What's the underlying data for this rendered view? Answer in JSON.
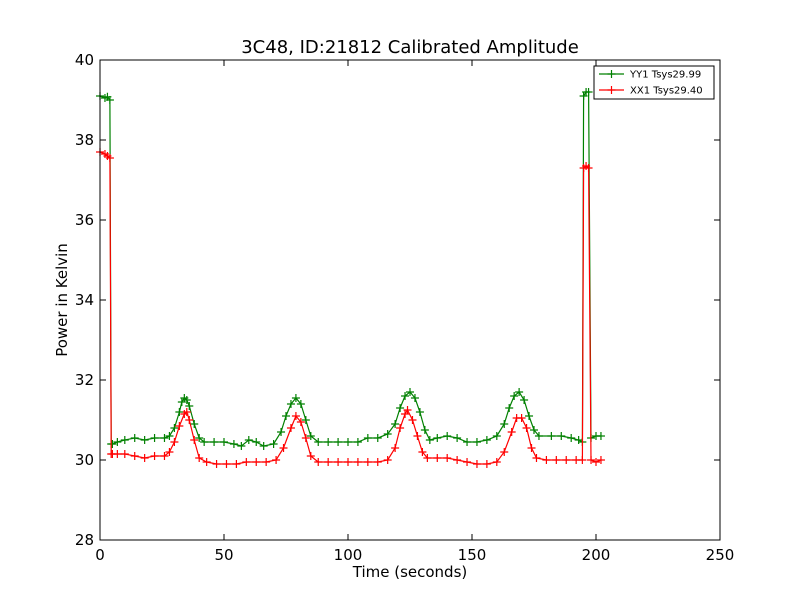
{
  "chart_data": {
    "type": "line",
    "title": "3C48, ID:21812 Calibrated Amplitude",
    "xlabel": "Time (seconds)",
    "ylabel": "Power in Kelvin",
    "xlim": [
      0,
      250
    ],
    "ylim": [
      28,
      40
    ],
    "xticks": [
      0,
      50,
      100,
      150,
      200,
      250
    ],
    "yticks": [
      28,
      30,
      32,
      34,
      36,
      38,
      40
    ],
    "grid": false,
    "legend_position": "top-right",
    "marker": "plus",
    "series": [
      {
        "name": "YY1 Tsys29.99",
        "color": "#008000",
        "points": [
          [
            0,
            39.1
          ],
          [
            2,
            39.05
          ],
          [
            3,
            39.08
          ],
          [
            4,
            39.0
          ],
          [
            4.5,
            30.4
          ],
          [
            5,
            30.4
          ],
          [
            7,
            30.45
          ],
          [
            10,
            30.5
          ],
          [
            14,
            30.55
          ],
          [
            18,
            30.5
          ],
          [
            22,
            30.55
          ],
          [
            26,
            30.55
          ],
          [
            28,
            30.6
          ],
          [
            30,
            30.8
          ],
          [
            32,
            31.2
          ],
          [
            33,
            31.45
          ],
          [
            34,
            31.55
          ],
          [
            35,
            31.5
          ],
          [
            36,
            31.35
          ],
          [
            38,
            30.9
          ],
          [
            40,
            30.55
          ],
          [
            42,
            30.45
          ],
          [
            46,
            30.45
          ],
          [
            50,
            30.45
          ],
          [
            54,
            30.4
          ],
          [
            57,
            30.35
          ],
          [
            60,
            30.5
          ],
          [
            63,
            30.45
          ],
          [
            66,
            30.35
          ],
          [
            70,
            30.4
          ],
          [
            73,
            30.7
          ],
          [
            75,
            31.1
          ],
          [
            77,
            31.4
          ],
          [
            79,
            31.55
          ],
          [
            81,
            31.4
          ],
          [
            83,
            31.0
          ],
          [
            85,
            30.6
          ],
          [
            88,
            30.45
          ],
          [
            92,
            30.45
          ],
          [
            96,
            30.45
          ],
          [
            100,
            30.45
          ],
          [
            104,
            30.45
          ],
          [
            108,
            30.55
          ],
          [
            112,
            30.55
          ],
          [
            116,
            30.65
          ],
          [
            119,
            30.9
          ],
          [
            121,
            31.3
          ],
          [
            123,
            31.6
          ],
          [
            125,
            31.7
          ],
          [
            127,
            31.55
          ],
          [
            129,
            31.2
          ],
          [
            131,
            30.75
          ],
          [
            133,
            30.5
          ],
          [
            136,
            30.55
          ],
          [
            140,
            30.6
          ],
          [
            144,
            30.55
          ],
          [
            148,
            30.45
          ],
          [
            152,
            30.45
          ],
          [
            156,
            30.5
          ],
          [
            160,
            30.6
          ],
          [
            163,
            30.9
          ],
          [
            165,
            31.3
          ],
          [
            167,
            31.6
          ],
          [
            169,
            31.7
          ],
          [
            171,
            31.5
          ],
          [
            173,
            31.1
          ],
          [
            175,
            30.75
          ],
          [
            177,
            30.6
          ],
          [
            182,
            30.6
          ],
          [
            186,
            30.6
          ],
          [
            190,
            30.55
          ],
          [
            193,
            30.5
          ],
          [
            194.5,
            30.45
          ],
          [
            195,
            39.1
          ],
          [
            196,
            39.2
          ],
          [
            197,
            39.2
          ],
          [
            198,
            30.55
          ],
          [
            200,
            30.6
          ],
          [
            202,
            30.6
          ]
        ]
      },
      {
        "name": "XX1 Tsys29.40",
        "color": "#ff0000",
        "points": [
          [
            0,
            37.7
          ],
          [
            2,
            37.65
          ],
          [
            3,
            37.6
          ],
          [
            4,
            37.55
          ],
          [
            4.5,
            30.15
          ],
          [
            5,
            30.15
          ],
          [
            7,
            30.15
          ],
          [
            10,
            30.15
          ],
          [
            14,
            30.1
          ],
          [
            18,
            30.05
          ],
          [
            22,
            30.1
          ],
          [
            26,
            30.1
          ],
          [
            28,
            30.2
          ],
          [
            30,
            30.45
          ],
          [
            32,
            30.85
          ],
          [
            34,
            31.15
          ],
          [
            35,
            31.2
          ],
          [
            36,
            31.0
          ],
          [
            38,
            30.5
          ],
          [
            40,
            30.05
          ],
          [
            43,
            29.95
          ],
          [
            47,
            29.9
          ],
          [
            51,
            29.9
          ],
          [
            55,
            29.9
          ],
          [
            59,
            29.95
          ],
          [
            63,
            29.95
          ],
          [
            67,
            29.95
          ],
          [
            71,
            30.0
          ],
          [
            74,
            30.3
          ],
          [
            77,
            30.8
          ],
          [
            79,
            31.1
          ],
          [
            81,
            30.95
          ],
          [
            83,
            30.55
          ],
          [
            85,
            30.1
          ],
          [
            88,
            29.95
          ],
          [
            92,
            29.95
          ],
          [
            96,
            29.95
          ],
          [
            100,
            29.95
          ],
          [
            104,
            29.95
          ],
          [
            108,
            29.95
          ],
          [
            112,
            29.95
          ],
          [
            116,
            30.0
          ],
          [
            119,
            30.3
          ],
          [
            121,
            30.8
          ],
          [
            123,
            31.15
          ],
          [
            124,
            31.25
          ],
          [
            126,
            31.0
          ],
          [
            128,
            30.6
          ],
          [
            130,
            30.2
          ],
          [
            132,
            30.05
          ],
          [
            136,
            30.05
          ],
          [
            140,
            30.05
          ],
          [
            144,
            30.0
          ],
          [
            148,
            29.95
          ],
          [
            152,
            29.9
          ],
          [
            156,
            29.9
          ],
          [
            160,
            29.95
          ],
          [
            163,
            30.2
          ],
          [
            166,
            30.7
          ],
          [
            168,
            31.05
          ],
          [
            170,
            31.05
          ],
          [
            172,
            30.8
          ],
          [
            174,
            30.3
          ],
          [
            176,
            30.05
          ],
          [
            180,
            30.0
          ],
          [
            184,
            30.0
          ],
          [
            188,
            30.0
          ],
          [
            192,
            30.0
          ],
          [
            194.5,
            30.0
          ],
          [
            195,
            37.3
          ],
          [
            196,
            37.35
          ],
          [
            197,
            37.3
          ],
          [
            198,
            30.0
          ],
          [
            200,
            29.95
          ],
          [
            202,
            30.0
          ]
        ]
      }
    ]
  }
}
